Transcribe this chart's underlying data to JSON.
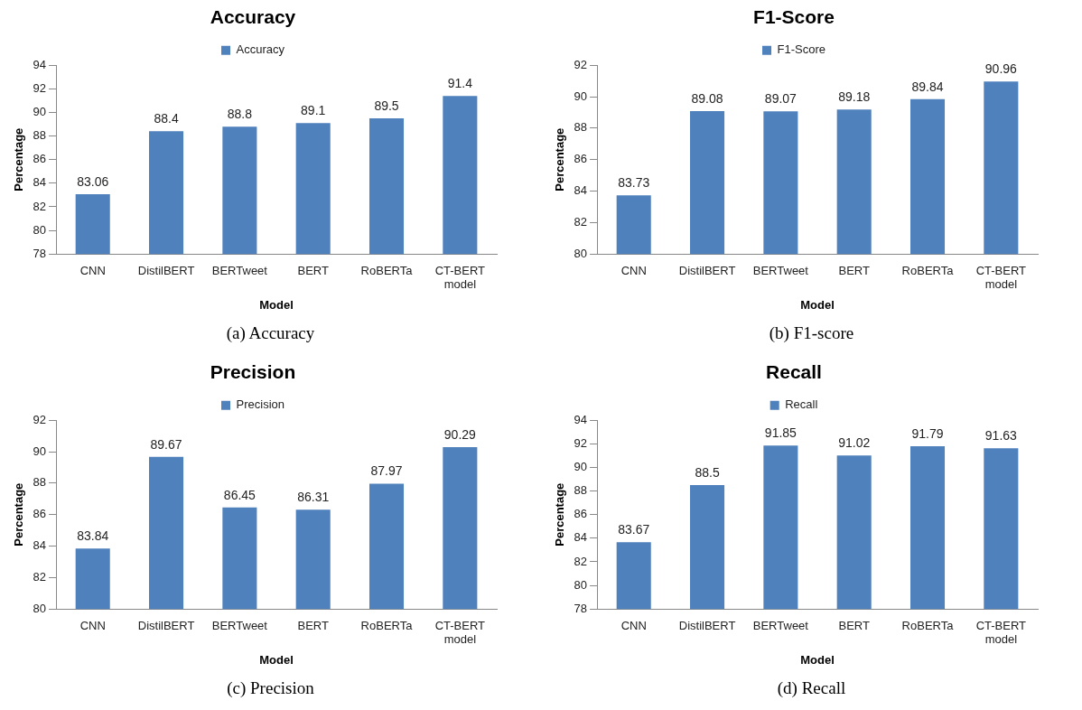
{
  "chart_data": [
    {
      "type": "bar",
      "title": "Accuracy",
      "xlabel": "Model",
      "ylabel": "Percentage",
      "categories": [
        "CNN",
        "DistilBERT",
        "BERTweet",
        "BERT",
        "RoBERTa",
        "CT-BERT model"
      ],
      "series": [
        {
          "name": "Accuracy",
          "color": "#4f81bd",
          "values": [
            83.06,
            88.4,
            88.8,
            89.1,
            89.5,
            91.4
          ]
        }
      ],
      "ylim": [
        78,
        94
      ],
      "yticks": [
        78,
        80,
        82,
        84,
        86,
        88,
        90,
        92,
        94
      ],
      "data_labels": true,
      "legend": "top",
      "grid": false,
      "annotations": [
        "(a) Accuracy"
      ]
    },
    {
      "type": "bar",
      "title": "F1-Score",
      "xlabel": "Model",
      "ylabel": "Percentage",
      "categories": [
        "CNN",
        "DistilBERT",
        "BERTweet",
        "BERT",
        "RoBERTa",
        "CT-BERT model"
      ],
      "series": [
        {
          "name": "F1-Score",
          "color": "#4f81bd",
          "values": [
            83.73,
            89.08,
            89.07,
            89.18,
            89.84,
            90.96
          ]
        }
      ],
      "ylim": [
        80,
        92
      ],
      "yticks": [
        80,
        82,
        84,
        86,
        88,
        90,
        92
      ],
      "data_labels": true,
      "legend": "top",
      "grid": false,
      "annotations": [
        "(b) F1-score"
      ]
    },
    {
      "type": "bar",
      "title": "Precision",
      "xlabel": "Model",
      "ylabel": "Percentage",
      "categories": [
        "CNN",
        "DistilBERT",
        "BERTweet",
        "BERT",
        "RoBERTa",
        "CT-BERT model"
      ],
      "series": [
        {
          "name": "Precision",
          "color": "#4f81bd",
          "values": [
            83.84,
            89.67,
            86.45,
            86.31,
            87.97,
            90.29
          ]
        }
      ],
      "ylim": [
        80,
        92
      ],
      "yticks": [
        80,
        82,
        84,
        86,
        88,
        90,
        92
      ],
      "data_labels": true,
      "legend": "top",
      "grid": false,
      "annotations": [
        "(c) Precision"
      ]
    },
    {
      "type": "bar",
      "title": "Recall",
      "xlabel": "Model",
      "ylabel": "Percentage",
      "categories": [
        "CNN",
        "DistilBERT",
        "BERTweet",
        "BERT",
        "RoBERTa",
        "CT-BERT model"
      ],
      "series": [
        {
          "name": "Recall",
          "color": "#4f81bd",
          "values": [
            83.67,
            88.5,
            91.85,
            91.02,
            91.79,
            91.63
          ]
        }
      ],
      "ylim": [
        78,
        94
      ],
      "yticks": [
        78,
        80,
        82,
        84,
        86,
        88,
        90,
        92,
        94
      ],
      "data_labels": true,
      "legend": "top",
      "grid": false,
      "annotations": [
        "(d) Recall"
      ]
    }
  ]
}
